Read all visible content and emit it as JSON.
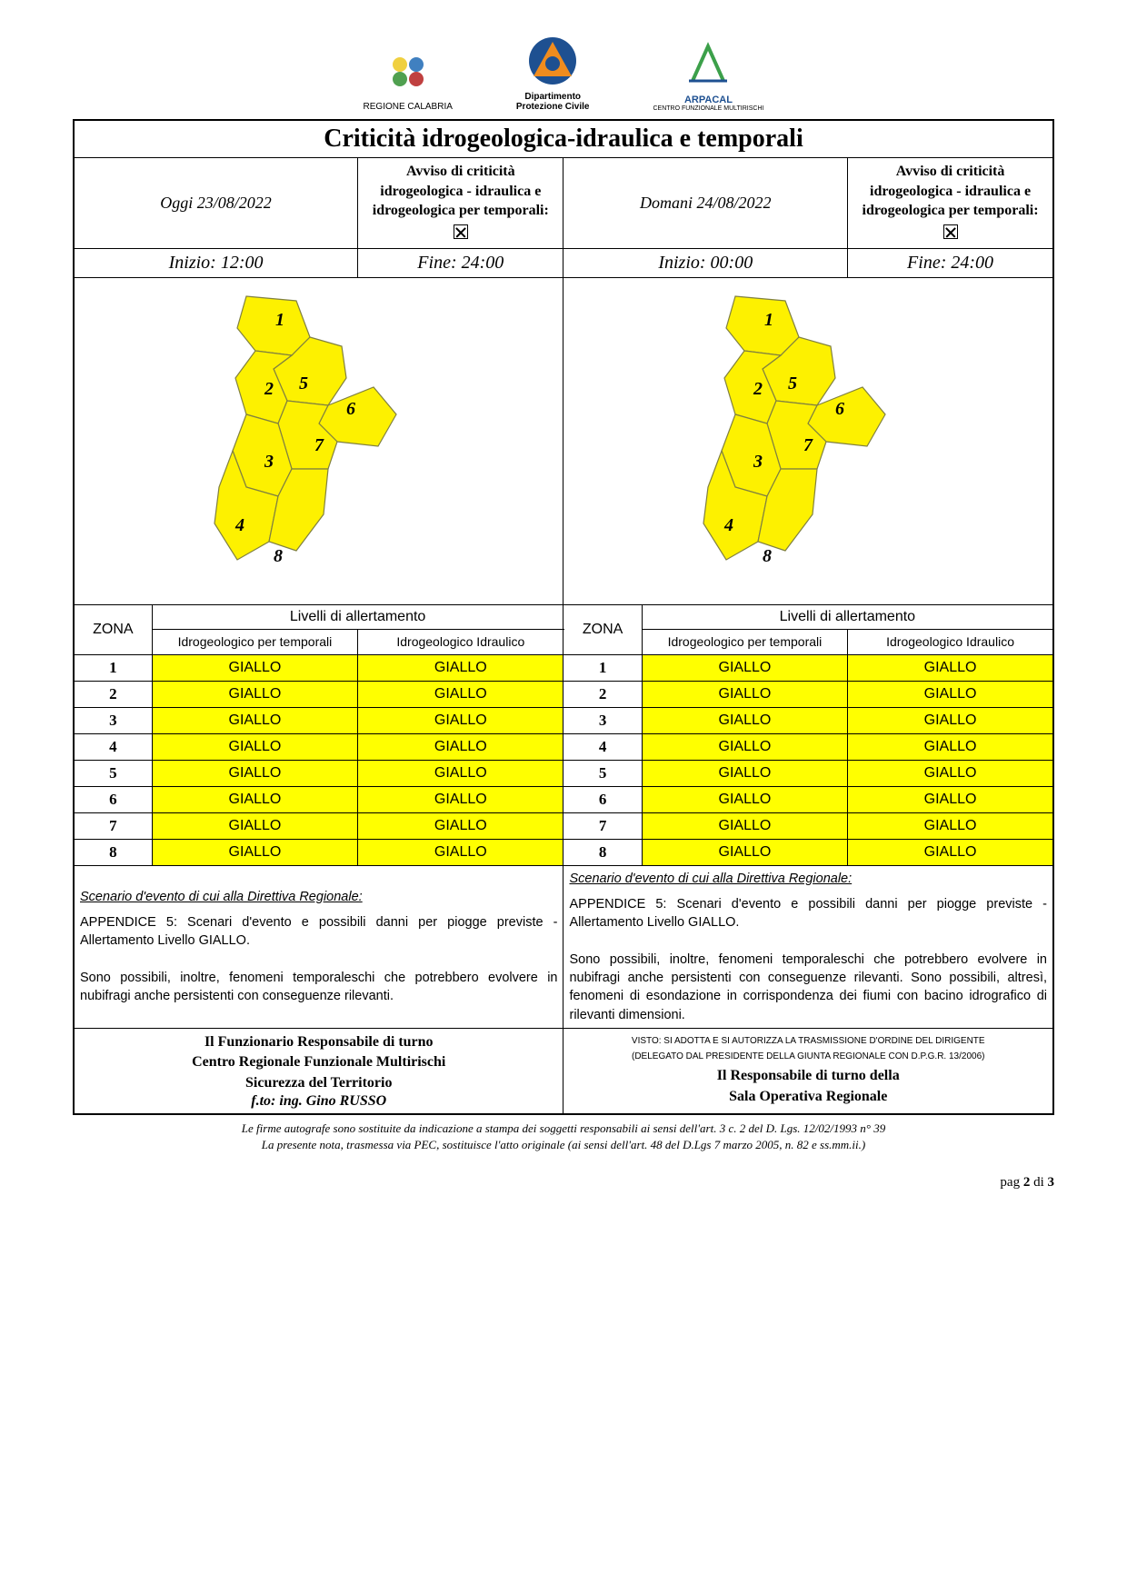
{
  "colors": {
    "yellow": "#ffff00",
    "map_fill": "#fdf100",
    "map_stroke": "#808040",
    "logo_orange": "#f08c1e",
    "logo_blue": "#1e5091",
    "logo_green": "#3ca04a"
  },
  "logos": {
    "l1": "REGIONE CALABRIA",
    "l2a": "Dipartimento",
    "l2b": "Protezione Civile",
    "l3": "ARPACAL",
    "l3b": "CENTRO FUNZIONALE MULTIRISCHI"
  },
  "title": "Criticità idrogeologica-idraulica e temporali",
  "advisory_text": "Avviso di criticità idrogeologica - idraulica e idrogeologica per temporali:",
  "today": {
    "date_label": "Oggi 23/08/2022",
    "start": "Inizio: 12:00",
    "end": "Fine: 24:00"
  },
  "tomorrow": {
    "date_label": "Domani 24/08/2022",
    "start": "Inizio: 00:00",
    "end": "Fine: 24:00"
  },
  "map_zones": [
    "1",
    "2",
    "3",
    "4",
    "5",
    "6",
    "7",
    "8"
  ],
  "headers": {
    "zona": "ZONA",
    "levels": "Livelli di allertamento",
    "col1": "Idrogeologico per temporali",
    "col2": "Idrogeologico Idraulico"
  },
  "level_label": "GIALLO",
  "zones_today": [
    {
      "z": "1",
      "a": "GIALLO",
      "b": "GIALLO"
    },
    {
      "z": "2",
      "a": "GIALLO",
      "b": "GIALLO"
    },
    {
      "z": "3",
      "a": "GIALLO",
      "b": "GIALLO"
    },
    {
      "z": "4",
      "a": "GIALLO",
      "b": "GIALLO"
    },
    {
      "z": "5",
      "a": "GIALLO",
      "b": "GIALLO"
    },
    {
      "z": "6",
      "a": "GIALLO",
      "b": "GIALLO"
    },
    {
      "z": "7",
      "a": "GIALLO",
      "b": "GIALLO"
    },
    {
      "z": "8",
      "a": "GIALLO",
      "b": "GIALLO"
    }
  ],
  "zones_tomorrow": [
    {
      "z": "1",
      "a": "GIALLO",
      "b": "GIALLO"
    },
    {
      "z": "2",
      "a": "GIALLO",
      "b": "GIALLO"
    },
    {
      "z": "3",
      "a": "GIALLO",
      "b": "GIALLO"
    },
    {
      "z": "4",
      "a": "GIALLO",
      "b": "GIALLO"
    },
    {
      "z": "5",
      "a": "GIALLO",
      "b": "GIALLO"
    },
    {
      "z": "6",
      "a": "GIALLO",
      "b": "GIALLO"
    },
    {
      "z": "7",
      "a": "GIALLO",
      "b": "GIALLO"
    },
    {
      "z": "8",
      "a": "GIALLO",
      "b": "GIALLO"
    }
  ],
  "scenario": {
    "title": "Scenario d'evento di cui alla Direttiva Regionale:",
    "today_p1": "APPENDICE 5: Scenari d'evento e possibili danni per piogge previste - Allertamento Livello GIALLO.",
    "today_p2": "Sono possibili, inoltre, fenomeni temporaleschi che potrebbero evolvere in nubifragi anche persistenti con conseguenze rilevanti.",
    "tomorrow_p1": "APPENDICE 5: Scenari d'evento e possibili danni per piogge previste - Allertamento Livello GIALLO.",
    "tomorrow_p2": "Sono possibili, inoltre, fenomeni temporaleschi che potrebbero evolvere in nubifragi anche persistenti con conseguenze rilevanti. Sono possibili, altresì, fenomeni di esondazione in corrispondenza dei fiumi con bacino idrografico di rilevanti dimensioni."
  },
  "sig_left": {
    "l1": "Il Funzionario Responsabile di turno",
    "l2": "Centro Regionale Funzionale Multirischi",
    "l3": "Sicurezza del Territorio",
    "l4": "f.to: ing. Gino RUSSO"
  },
  "sig_right": {
    "small1": "VISTO: SI ADOTTA E SI AUTORIZZA LA TRASMISSIONE D'ORDINE DEL DIRIGENTE",
    "small2": "(DELEGATO DAL PRESIDENTE DELLA GIUNTA REGIONALE CON D.P.G.R. 13/2006)",
    "l1": "Il Responsabile di turno della",
    "l2": "Sala Operativa Regionale"
  },
  "footer": {
    "l1": "Le firme autografe sono sostituite da indicazione a stampa dei soggetti responsabili ai sensi dell'art. 3 c. 2 del D. Lgs. 12/02/1993 n° 39",
    "l2": "La presente nota, trasmessa via PEC, sostituisce l'atto originale (ai sensi dell'art. 48 del D.Lgs 7 marzo 2005, n. 82 e ss.mm.ii.)"
  },
  "page": {
    "prefix": "pag ",
    "cur": "2",
    "sep": " di ",
    "tot": "3"
  }
}
